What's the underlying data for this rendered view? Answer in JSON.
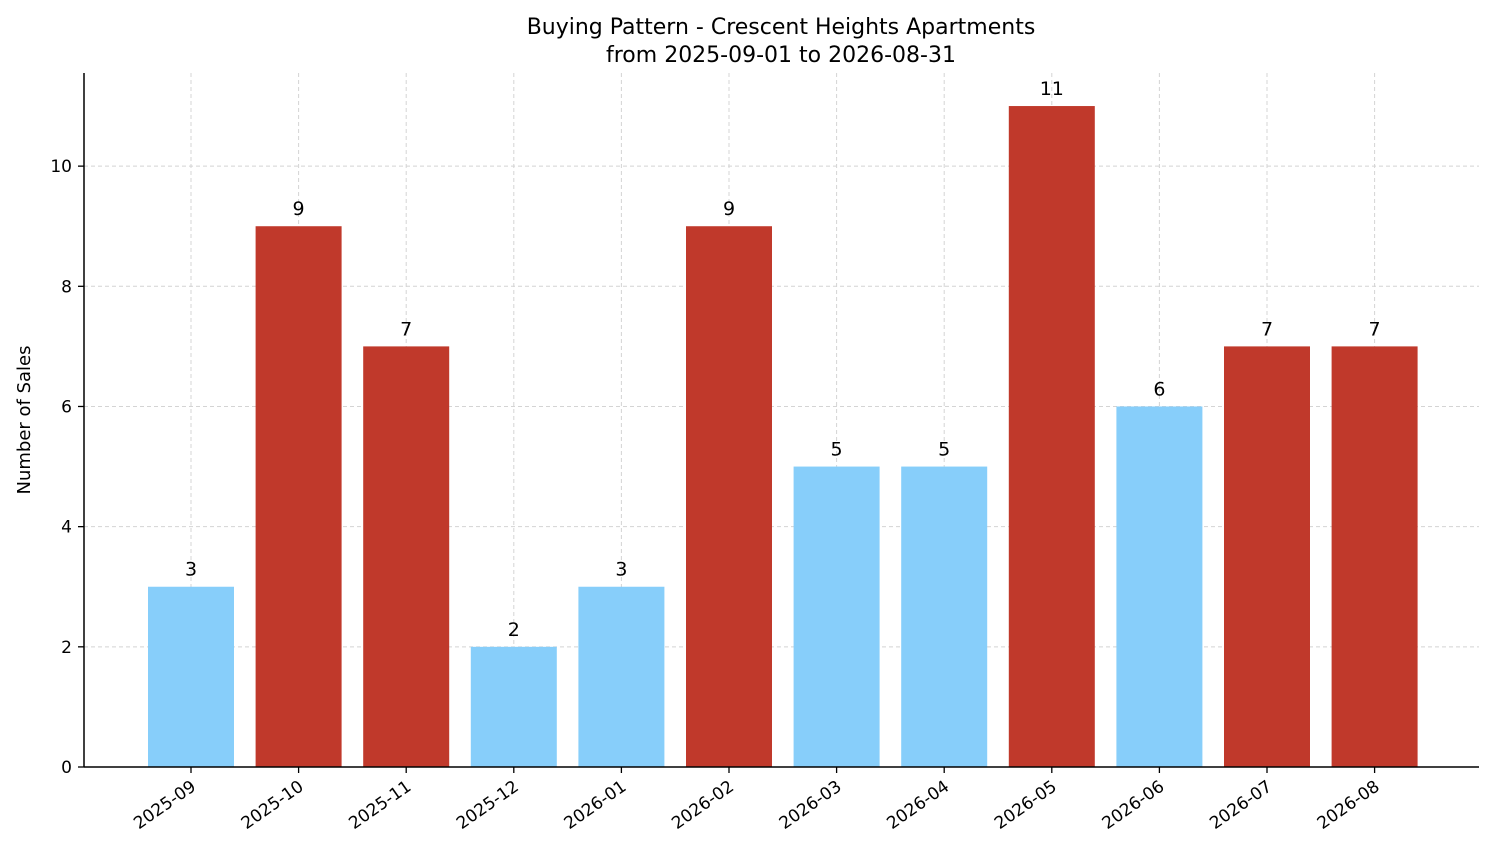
{
  "chart_data": {
    "type": "bar",
    "title": "Buying Pattern - Crescent Heights Apartments",
    "subtitle": "from 2025-09-01 to 2026-08-31",
    "xlabel": "",
    "ylabel": "Number of Sales",
    "categories": [
      "2025-09",
      "2025-10",
      "2025-11",
      "2025-12",
      "2026-01",
      "2026-02",
      "2026-03",
      "2026-04",
      "2026-05",
      "2026-06",
      "2026-07",
      "2026-08"
    ],
    "values": [
      3,
      9,
      7,
      2,
      3,
      9,
      5,
      5,
      11,
      6,
      7,
      7
    ],
    "bar_colors": [
      "#87CEFA",
      "#C0392B",
      "#C0392B",
      "#87CEFA",
      "#87CEFA",
      "#C0392B",
      "#87CEFA",
      "#87CEFA",
      "#C0392B",
      "#87CEFA",
      "#C0392B",
      "#C0392B"
    ],
    "ylim": [
      0,
      11.55
    ],
    "yticks": [
      0,
      2,
      4,
      6,
      8,
      10
    ],
    "grid": true
  }
}
